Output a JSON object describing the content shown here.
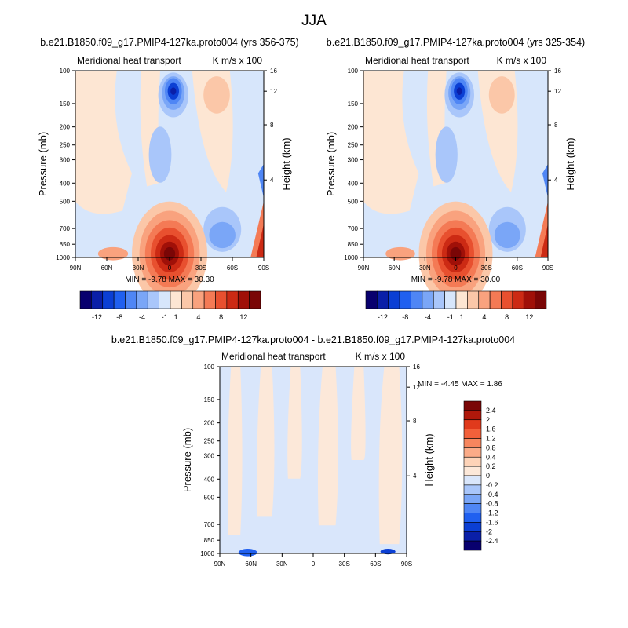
{
  "figure": {
    "title": "JJA"
  },
  "chart_data": [
    {
      "type": "heatmap",
      "title": "b.e21.B1850.f09_g17.PMIP4-127ka.proto004 (yrs 356-375)",
      "left_subtitle": "Meridional heat transport",
      "right_subtitle": "K m/s x 100",
      "ylabel": "Pressure (mb)",
      "ylabel_right": "Height (km)",
      "x_ticks": [
        "90N",
        "60N",
        "30N",
        "0",
        "30S",
        "60S",
        "90S"
      ],
      "y_ticks": [
        "100",
        "150",
        "200",
        "250",
        "300",
        "400",
        "500",
        "700",
        "850",
        "1000"
      ],
      "height_ticks": [
        "16",
        "12",
        "8",
        "4"
      ],
      "min_label": "MIN =",
      "min": "-9.78",
      "max_label": "MAX =",
      "max": "30.30",
      "colorbar_labels": [
        "-12",
        "-8",
        "-4",
        "-1",
        "1",
        "4",
        "8",
        "12"
      ]
    },
    {
      "type": "heatmap",
      "title": "b.e21.B1850.f09_g17.PMIP4-127ka.proto004 (yrs 325-354)",
      "left_subtitle": "Meridional heat transport",
      "right_subtitle": "K m/s x 100",
      "ylabel": "Pressure (mb)",
      "ylabel_right": "Height (km)",
      "x_ticks": [
        "90N",
        "60N",
        "30N",
        "0",
        "30S",
        "60S",
        "90S"
      ],
      "y_ticks": [
        "100",
        "150",
        "200",
        "250",
        "300",
        "400",
        "500",
        "700",
        "850",
        "1000"
      ],
      "height_ticks": [
        "16",
        "12",
        "8",
        "4"
      ],
      "min_label": "MIN =",
      "min": "-9.78",
      "max_label": "MAX =",
      "max": "30.00",
      "colorbar_labels": [
        "-12",
        "-8",
        "-4",
        "-1",
        "1",
        "4",
        "8",
        "12"
      ]
    },
    {
      "type": "heatmap",
      "title": "b.e21.B1850.f09_g17.PMIP4-127ka.proto004 - b.e21.B1850.f09_g17.PMIP4-127ka.proto004",
      "left_subtitle": "Meridional heat transport",
      "right_subtitle": "K m/s x 100",
      "ylabel": "Pressure (mb)",
      "ylabel_right": "Height (km)",
      "x_ticks": [
        "90N",
        "60N",
        "30N",
        "0",
        "30S",
        "60S",
        "90S"
      ],
      "y_ticks": [
        "100",
        "150",
        "200",
        "250",
        "300",
        "400",
        "500",
        "700",
        "850",
        "1000"
      ],
      "height_ticks": [
        "16",
        "12",
        "8",
        "4"
      ],
      "min_label": "MIN =",
      "min": "-4.45",
      "max_label": "MAX =",
      "max": "1.86",
      "colorbar_labels": [
        "2.4",
        "2",
        "1.6",
        "1.2",
        "0.8",
        "0.4",
        "0.2",
        "0",
        "-0.2",
        "-0.4",
        "-0.8",
        "-1.2",
        "-1.6",
        "-2",
        "-2.4"
      ]
    }
  ],
  "colors": {
    "main_colorbar": [
      "#08006e",
      "#0a1fa8",
      "#0b3fd4",
      "#2060f0",
      "#4f86f5",
      "#7aa6f7",
      "#a9c6fa",
      "#d7e6fb",
      "#fde6d3",
      "#fbc7a8",
      "#f9a27e",
      "#f47a55",
      "#e8502f",
      "#cc2a14",
      "#a01008",
      "#7a0606"
    ],
    "diff_colorbar": [
      "#7a0606",
      "#b0180b",
      "#e03a1c",
      "#f2603a",
      "#f7865e",
      "#fbab88",
      "#fdd3b8",
      "#fce8d9",
      "#d9e6fb",
      "#a9c6fa",
      "#7aa6f7",
      "#4f86f5",
      "#2060f0",
      "#0b3fd4",
      "#0a1fa8",
      "#08006e"
    ]
  }
}
